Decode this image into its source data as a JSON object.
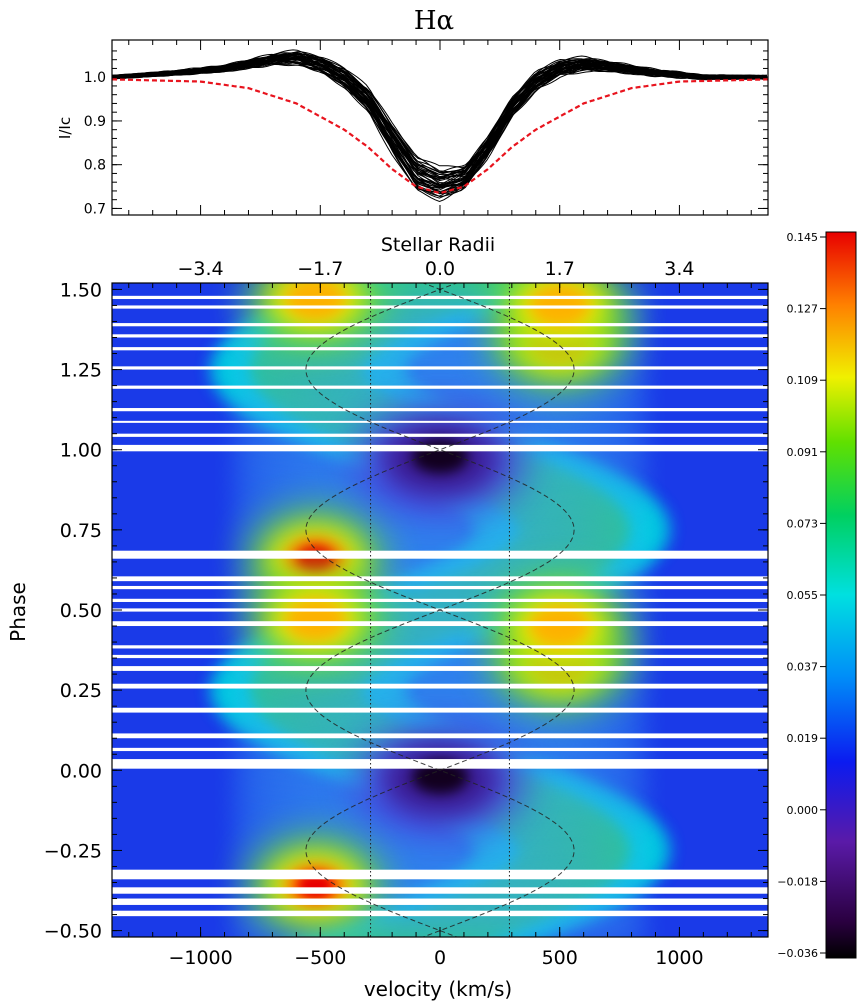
{
  "chart_data": [
    {
      "type": "line",
      "title": "Hα",
      "ylabel": "I/Ic",
      "xlabel": "",
      "xlim": [
        -1370,
        1370
      ],
      "ylim": [
        0.685,
        1.085
      ],
      "ytick_labels": [
        "0.7",
        "0.8",
        "0.9",
        "1.0"
      ],
      "yticks": [
        0.7,
        0.8,
        0.9,
        1.0
      ],
      "series": [
        {
          "name": "observed profiles (overplotted, ~40 phases)",
          "color": "#000000",
          "mean_x": [
            -1370,
            -1100,
            -900,
            -700,
            -600,
            -500,
            -400,
            -300,
            -200,
            -100,
            0,
            100,
            200,
            300,
            400,
            500,
            600,
            700,
            900,
            1100,
            1370
          ],
          "mean_y": [
            1.0,
            1.01,
            1.02,
            1.04,
            1.045,
            1.03,
            1.0,
            0.95,
            0.86,
            0.78,
            0.755,
            0.77,
            0.84,
            0.93,
            0.99,
            1.02,
            1.03,
            1.025,
            1.01,
            1.0,
            1.0
          ],
          "spread": 0.035
        },
        {
          "name": "reference profile",
          "color": "#e8141e",
          "style": "dashed",
          "x": [
            -1370,
            -1000,
            -800,
            -600,
            -400,
            -300,
            -200,
            -100,
            0,
            100,
            200,
            300,
            400,
            600,
            800,
            1000,
            1370
          ],
          "y": [
            0.995,
            0.99,
            0.975,
            0.94,
            0.88,
            0.84,
            0.79,
            0.75,
            0.735,
            0.75,
            0.79,
            0.84,
            0.88,
            0.94,
            0.975,
            0.99,
            0.995
          ]
        }
      ]
    },
    {
      "type": "heatmap",
      "title": "",
      "xlabel": "velocity (km/s)",
      "ylabel": "Phase",
      "top_axis_label": "Stellar Radii",
      "xlim": [
        -1370,
        1370
      ],
      "ylim": [
        -0.52,
        1.52
      ],
      "xticks": [
        -1000,
        -500,
        0,
        500,
        1000
      ],
      "xtick_labels": [
        "−1000",
        "−500",
        "0",
        "500",
        "1000"
      ],
      "top_ticks_velocity": [
        -1000,
        -500,
        0,
        500,
        1000
      ],
      "top_tick_labels": [
        "−3.4",
        "−1.7",
        "0.0",
        "1.7",
        "3.4"
      ],
      "yticks": [
        -0.5,
        -0.25,
        0.0,
        0.25,
        0.5,
        0.75,
        1.0,
        1.25,
        1.5
      ],
      "ytick_labels": [
        "−0.50",
        "−0.25",
        "0.00",
        "0.25",
        "0.50",
        "0.75",
        "1.00",
        "1.25",
        "1.50"
      ],
      "vertical_dotted_lines_velocity": [
        -290,
        290
      ],
      "sinusoid": {
        "amplitude_velocity": 560,
        "center_velocity": 0,
        "period_phase": 1.0
      },
      "data_gaps_phase": [
        [
          -0.455,
          -0.438
        ],
        [
          -0.42,
          -0.4
        ],
        [
          -0.385,
          -0.365
        ],
        [
          -0.34,
          -0.31
        ],
        [
          0.005,
          0.035
        ],
        [
          0.06,
          0.07
        ],
        [
          0.1,
          0.115
        ],
        [
          0.18,
          0.195
        ],
        [
          0.255,
          0.27
        ],
        [
          0.31,
          0.325
        ],
        [
          0.35,
          0.36
        ],
        [
          0.38,
          0.39
        ],
        [
          0.45,
          0.465
        ],
        [
          0.495,
          0.505
        ],
        [
          0.525,
          0.535
        ],
        [
          0.565,
          0.575
        ],
        [
          0.59,
          0.605
        ],
        [
          0.66,
          0.685
        ],
        [
          0.995,
          1.015
        ],
        [
          1.04,
          1.05
        ],
        [
          1.085,
          1.09
        ],
        [
          1.12,
          1.13
        ],
        [
          1.19,
          1.2
        ],
        [
          1.25,
          1.26
        ],
        [
          1.31,
          1.32
        ],
        [
          1.35,
          1.36
        ],
        [
          1.385,
          1.395
        ],
        [
          1.44,
          1.45
        ],
        [
          1.47,
          1.48
        ]
      ],
      "features": [
        {
          "label": "emission",
          "velocity": -520,
          "phase": -0.36,
          "value": 0.145
        },
        {
          "label": "emission",
          "velocity": -520,
          "phase": 0.66,
          "value": 0.145
        },
        {
          "label": "emission",
          "velocity": -520,
          "phase": 0.47,
          "value": 0.11
        },
        {
          "label": "emission",
          "velocity": -520,
          "phase": 1.47,
          "value": 0.11
        },
        {
          "label": "emission",
          "velocity": 500,
          "phase": 0.34,
          "value": 0.115
        },
        {
          "label": "emission",
          "velocity": 500,
          "phase": 1.34,
          "value": 0.115
        },
        {
          "label": "emission",
          "velocity": 500,
          "phase": 0.45,
          "value": 0.1
        },
        {
          "label": "emission",
          "velocity": 500,
          "phase": 1.45,
          "value": 0.1
        },
        {
          "label": "absorption",
          "velocity": 0,
          "phase": -0.03,
          "value": -0.036
        },
        {
          "label": "absorption",
          "velocity": 0,
          "phase": 0.97,
          "value": -0.036
        }
      ],
      "colorbar": {
        "vmin": -0.036,
        "vmax": 0.145,
        "tick_labels": [
          "0.145",
          "0.127",
          "0.109",
          "0.091",
          "0.073",
          "0.055",
          "0.037",
          "0.019",
          "0.000",
          "−0.018",
          "−0.036"
        ]
      }
    }
  ]
}
